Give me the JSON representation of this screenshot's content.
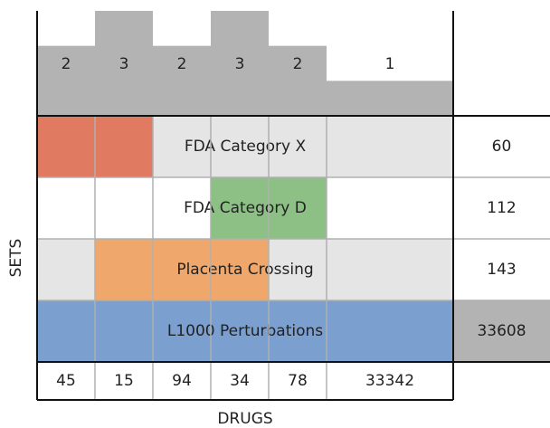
{
  "chart_data": {
    "type": "upset",
    "x_label": "DRUGS",
    "y_label": "SETS",
    "sets": [
      {
        "name": "FDA Category X",
        "color": "#e07b62",
        "size": 60
      },
      {
        "name": "FDA Category D",
        "color": "#8cc084",
        "size": 112
      },
      {
        "name": "Placenta Crossing",
        "color": "#f0a76c",
        "size": 143
      },
      {
        "name": "L1000 Perturbations",
        "color": "#7b9fcf",
        "size": 33608
      }
    ],
    "row_backgrounds": [
      "#e5e5e5",
      "#ffffff",
      "#e5e5e5",
      "#ffffff"
    ],
    "size_cell_colors": [
      "#ffffff",
      "#ffffff",
      "#ffffff",
      "#b3b3b3"
    ],
    "membership": [
      [
        true,
        true,
        false,
        false,
        false,
        false
      ],
      [
        false,
        false,
        false,
        true,
        true,
        false
      ],
      [
        false,
        true,
        true,
        true,
        false,
        false
      ],
      [
        true,
        true,
        true,
        true,
        true,
        true
      ]
    ],
    "degrees": [
      2,
      3,
      2,
      3,
      2,
      1
    ],
    "degree_color": "#b3b3b3",
    "ylim": [
      0,
      3
    ],
    "counts": [
      45,
      15,
      94,
      34,
      78,
      33342
    ]
  }
}
